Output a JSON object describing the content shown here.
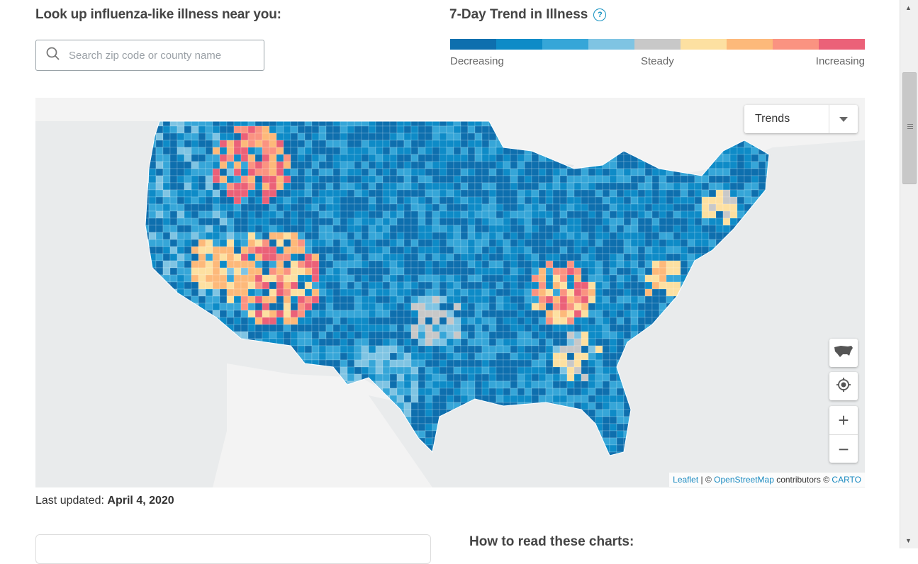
{
  "lookup": {
    "title": "Look up influenza-like illness near you:",
    "search_placeholder": "Search zip code or county name",
    "search_value": ""
  },
  "trend": {
    "title": "7-Day Trend in Illness",
    "help_icon": "question-circle-icon",
    "legend_colors": [
      "#0e6fae",
      "#0e8bc7",
      "#36a6d8",
      "#7fc4e3",
      "#c8c8c8",
      "#fde0a1",
      "#fdb97a",
      "#fa9381",
      "#eb6178"
    ],
    "legend_labels": {
      "low": "Decreasing",
      "mid": "Steady",
      "high": "Increasing"
    }
  },
  "map": {
    "dropdown_label": "Trends",
    "controls": {
      "usa_icon": "usa-map-icon",
      "locate_icon": "crosshair-target-icon",
      "zoom_in": "+",
      "zoom_out": "−"
    },
    "attribution": {
      "leaflet": "Leaflet",
      "sep1": " | © ",
      "osm": "OpenStreetMap",
      "contributors": " contributors © ",
      "carto": "CARTO"
    },
    "colors": {
      "water": "#e9ebec",
      "land": "#f4f4f4",
      "decreasing": "#0e6fae",
      "increasing": "#eb6178"
    }
  },
  "updated": {
    "label": "Last updated:",
    "date": "April 4, 2020"
  },
  "howto": {
    "title": "How to read these charts:"
  }
}
